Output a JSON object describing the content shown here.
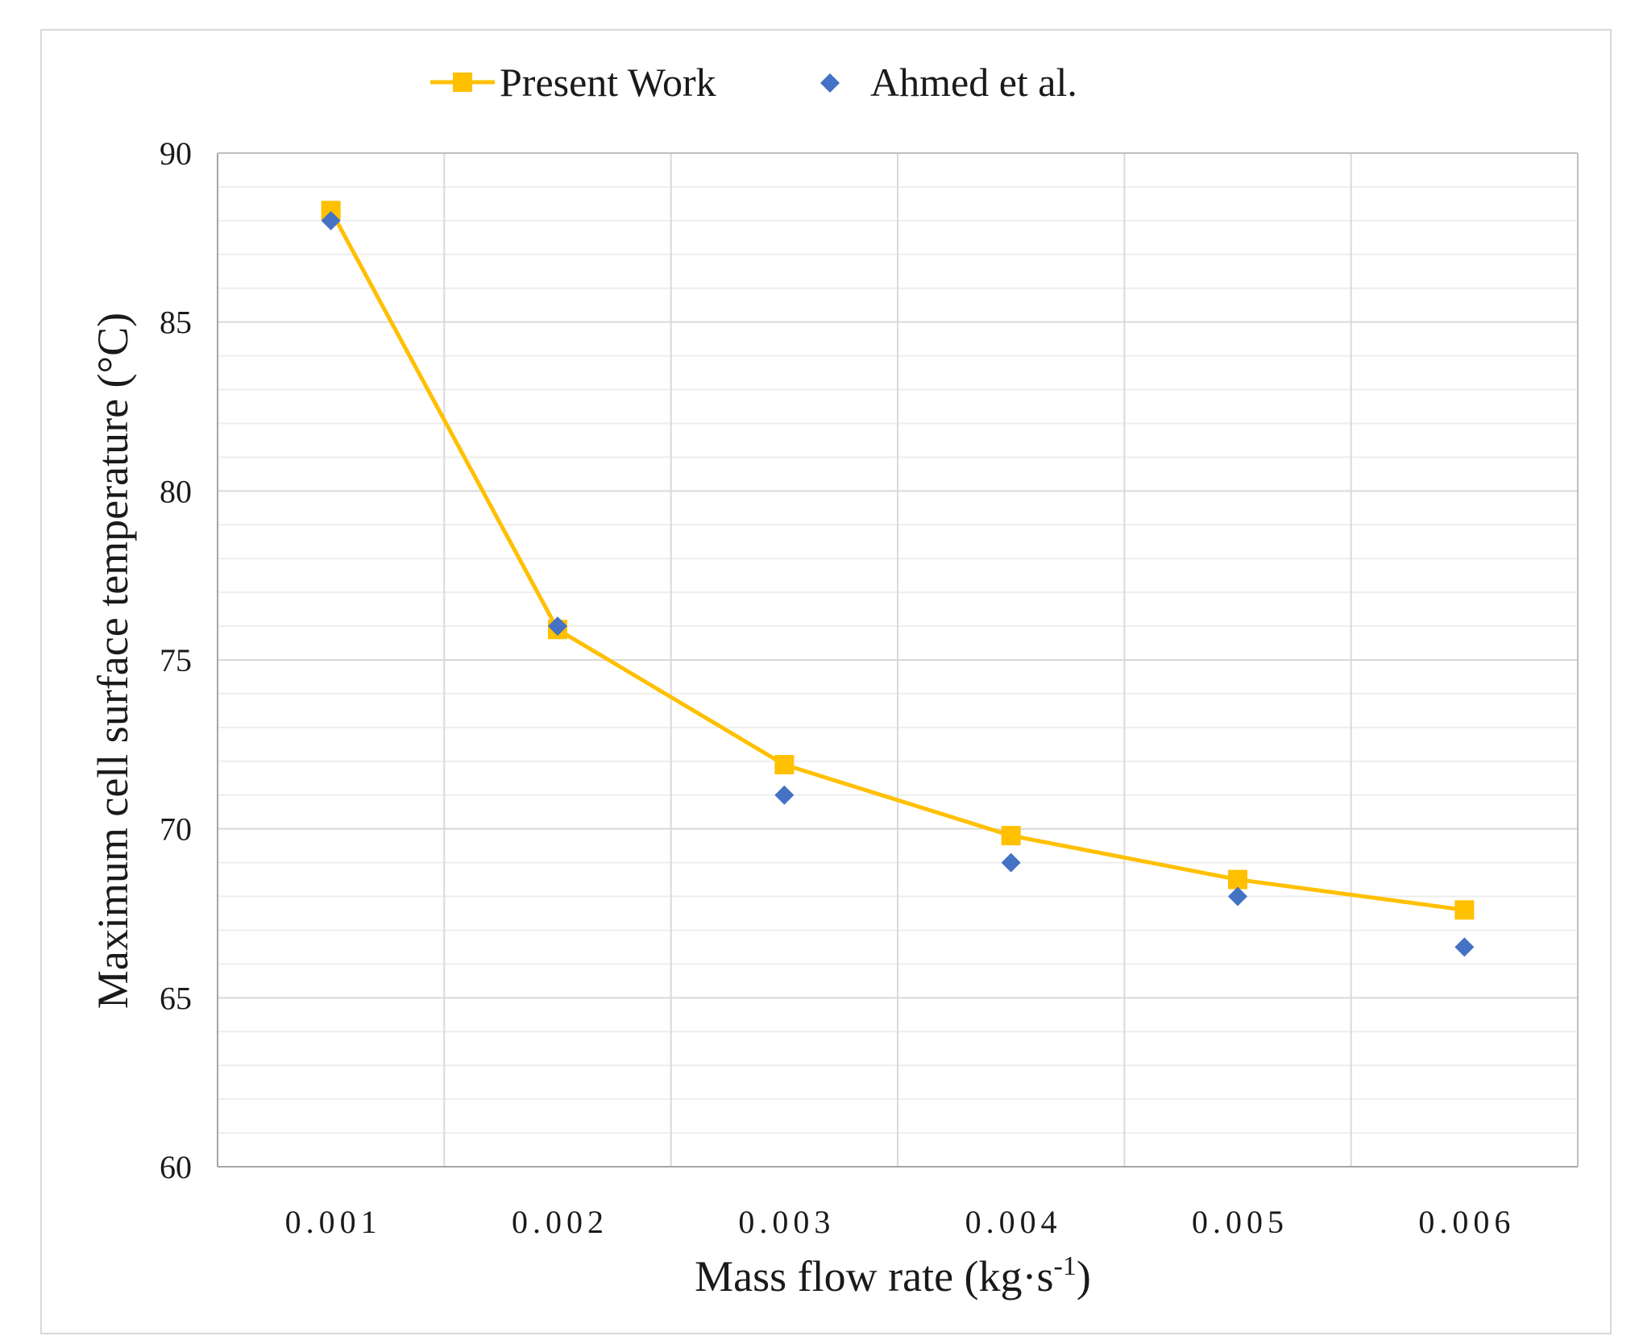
{
  "chart_data": {
    "type": "line",
    "title": "",
    "xlabel": "Mass flow rate (kg·s",
    "xlabel_sup": "-1",
    "xlabel_end": ")",
    "ylabel": "Maximum cell surface temperature (°C)",
    "categories": [
      "0.001",
      "0.002",
      "0.003",
      "0.004",
      "0.005",
      "0.006"
    ],
    "ylim": [
      60,
      90
    ],
    "yticks": [
      "60",
      "65",
      "70",
      "75",
      "80",
      "85",
      "90"
    ],
    "ytick_values": [
      60,
      65,
      70,
      75,
      80,
      85,
      90
    ],
    "grid": true,
    "legend_position": "top",
    "series": [
      {
        "name": "Present Work",
        "style": "line-with-square-markers",
        "color": "#FFC000",
        "values": [
          88.3,
          75.9,
          71.9,
          69.8,
          68.5,
          67.6
        ]
      },
      {
        "name": "Ahmed et al.",
        "style": "diamond-markers",
        "color": "#4472C4",
        "values": [
          88.0,
          76.0,
          71.0,
          69.0,
          68.0,
          66.5
        ]
      }
    ]
  }
}
